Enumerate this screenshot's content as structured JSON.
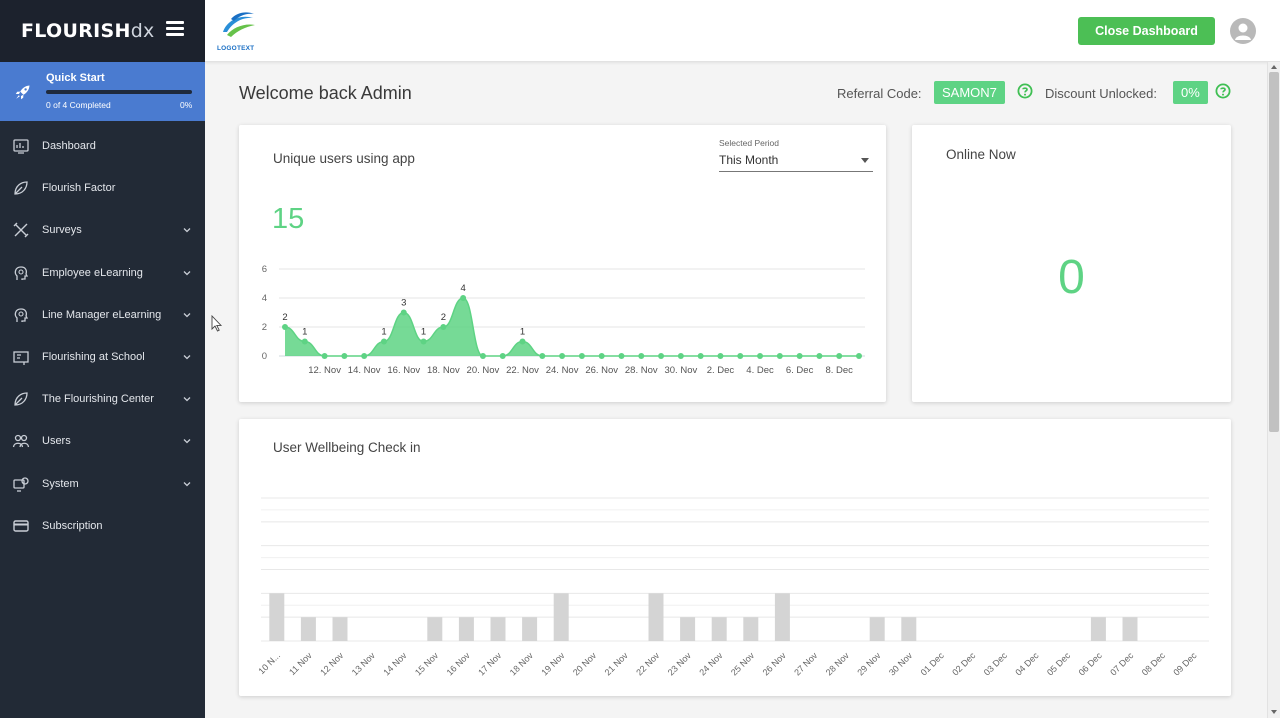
{
  "app": {
    "logo_bold": "FLOURISH",
    "logo_light": "dx",
    "client_logo_text": "LOGOTEXT"
  },
  "quick_start": {
    "title": "Quick Start",
    "progress_text": "0 of 4 Completed",
    "percent": "0%",
    "progress": 0
  },
  "sidebar": {
    "items": [
      {
        "label": "Dashboard",
        "icon": "dashboard-icon",
        "has_chevron": false
      },
      {
        "label": "Flourish Factor",
        "icon": "leaf-icon",
        "has_chevron": false
      },
      {
        "label": "Surveys",
        "icon": "tools-icon",
        "has_chevron": true
      },
      {
        "label": "Employee eLearning",
        "icon": "head-icon",
        "has_chevron": true
      },
      {
        "label": "Line Manager eLearning",
        "icon": "head-icon",
        "has_chevron": true
      },
      {
        "label": "Flourishing at School",
        "icon": "school-icon",
        "has_chevron": true
      },
      {
        "label": "The Flourishing Center",
        "icon": "leaf-icon",
        "has_chevron": true
      },
      {
        "label": "Users",
        "icon": "users-icon",
        "has_chevron": true
      },
      {
        "label": "System",
        "icon": "system-icon",
        "has_chevron": true
      },
      {
        "label": "Subscription",
        "icon": "card-icon",
        "has_chevron": false
      }
    ]
  },
  "topbar": {
    "close_label": "Close Dashboard"
  },
  "header": {
    "welcome": "Welcome back Admin",
    "referral_label": "Referral Code:",
    "referral_code": "SAMON7",
    "discount_label": "Discount Unlocked:",
    "discount_value": "0%"
  },
  "users_card": {
    "title": "Unique users using app",
    "period_label": "Selected Period",
    "period_value": "This Month",
    "total": "15"
  },
  "online_card": {
    "title": "Online Now",
    "value": "0"
  },
  "wellbeing_card": {
    "title": "User Wellbeing Check in"
  },
  "colors": {
    "accent": "#5ed384",
    "button": "#4cbf55",
    "sidebar": "#222a36",
    "quickstart": "#4a7bd0",
    "bars": "#d4d4d4"
  },
  "chart_data": [
    {
      "type": "area",
      "title": "Unique users using app",
      "x": [
        "10 Nov",
        "11 Nov",
        "12 Nov",
        "13 Nov",
        "14 Nov",
        "15 Nov",
        "16 Nov",
        "17 Nov",
        "18 Nov",
        "19 Nov",
        "20 Nov",
        "21 Nov",
        "22 Nov",
        "23 Nov",
        "24 Nov",
        "25 Nov",
        "26 Nov",
        "27 Nov",
        "28 Nov",
        "29 Nov",
        "30 Nov",
        "1 Dec",
        "2 Dec",
        "3 Dec",
        "4 Dec",
        "5 Dec",
        "6 Dec",
        "7 Dec",
        "8 Dec",
        "9 Dec"
      ],
      "values": [
        2,
        1,
        0,
        0,
        0,
        1,
        3,
        1,
        2,
        4,
        0,
        0,
        1,
        0,
        0,
        0,
        0,
        0,
        0,
        0,
        0,
        0,
        0,
        0,
        0,
        0,
        0,
        0,
        0,
        0
      ],
      "tick_labels": [
        "12. Nov",
        "14. Nov",
        "16. Nov",
        "18. Nov",
        "20. Nov",
        "22. Nov",
        "24. Nov",
        "26. Nov",
        "28. Nov",
        "30. Nov",
        "2. Dec",
        "4. Dec",
        "6. Dec",
        "8. Dec"
      ],
      "tick_indices": [
        2,
        4,
        6,
        8,
        10,
        12,
        14,
        16,
        18,
        20,
        22,
        24,
        26,
        28
      ],
      "yticks": [
        0,
        2,
        4,
        6
      ],
      "ylim": [
        0,
        6
      ],
      "grid": true
    },
    {
      "type": "bar",
      "title": "User Wellbeing Check in",
      "categories": [
        "10 N...",
        "11 Nov",
        "12 Nov",
        "13 Nov",
        "14 Nov",
        "15 Nov",
        "16 Nov",
        "17 Nov",
        "18 Nov",
        "19 Nov",
        "20 Nov",
        "21 Nov",
        "22 Nov",
        "23 Nov",
        "24 Nov",
        "25 Nov",
        "26 Nov",
        "27 Nov",
        "28 Nov",
        "29 Nov",
        "30 Nov",
        "01 Dec",
        "02 Dec",
        "03 Dec",
        "04 Dec",
        "05 Dec",
        "06 Dec",
        "07 Dec",
        "08 Dec",
        "09 Dec"
      ],
      "values": [
        2,
        1,
        1,
        0,
        0,
        1,
        1,
        1,
        1,
        2,
        0,
        0,
        2,
        1,
        1,
        1,
        2,
        0,
        0,
        1,
        1,
        0,
        0,
        0,
        0,
        0,
        1,
        1,
        0,
        0
      ],
      "ylim": [
        0,
        6
      ],
      "grid": true
    }
  ]
}
